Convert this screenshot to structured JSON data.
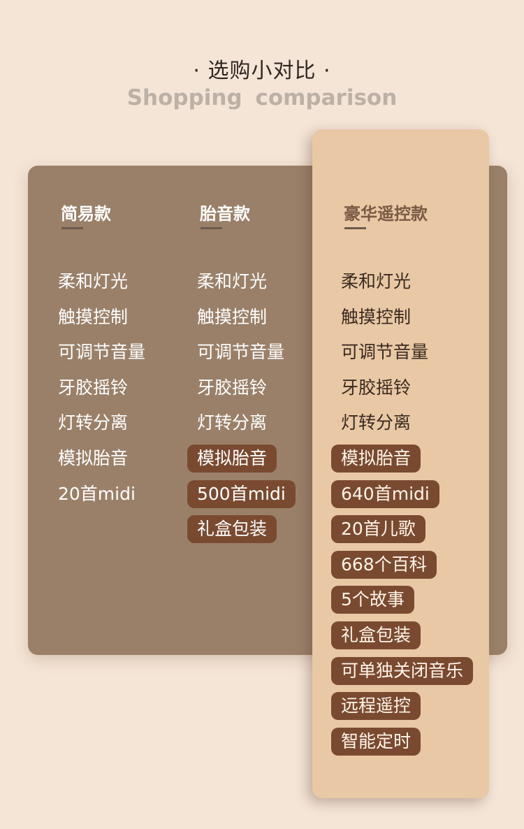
{
  "header": {
    "title": "· 选购小对比 ·",
    "subtitle": "Shopping  comparison"
  },
  "colors": {
    "background": "#f5e5d7",
    "card": "#9a8069",
    "highlight_card": "#e9c8a5",
    "pill": "#7a4a30"
  },
  "columns": [
    {
      "name": "简易款",
      "features": [
        {
          "text": "柔和灯光",
          "highlight": false
        },
        {
          "text": "触摸控制",
          "highlight": false
        },
        {
          "text": "可调节音量",
          "highlight": false
        },
        {
          "text": "牙胶摇铃",
          "highlight": false
        },
        {
          "text": "灯转分离",
          "highlight": false
        },
        {
          "text": "模拟胎音",
          "highlight": false
        },
        {
          "text": "20首midi",
          "highlight": false
        }
      ]
    },
    {
      "name": "胎音款",
      "features": [
        {
          "text": "柔和灯光",
          "highlight": false
        },
        {
          "text": "触摸控制",
          "highlight": false
        },
        {
          "text": "可调节音量",
          "highlight": false
        },
        {
          "text": "牙胶摇铃",
          "highlight": false
        },
        {
          "text": "灯转分离",
          "highlight": false
        },
        {
          "text": "模拟胎音",
          "highlight": true
        },
        {
          "text": "500首midi",
          "highlight": true
        },
        {
          "text": "礼盒包装",
          "highlight": true
        }
      ]
    },
    {
      "name": "豪华遥控款",
      "features": [
        {
          "text": "柔和灯光",
          "highlight": false
        },
        {
          "text": "触摸控制",
          "highlight": false
        },
        {
          "text": "可调节音量",
          "highlight": false
        },
        {
          "text": "牙胶摇铃",
          "highlight": false
        },
        {
          "text": "灯转分离",
          "highlight": false
        },
        {
          "text": "模拟胎音",
          "highlight": true
        },
        {
          "text": "640首midi",
          "highlight": true
        },
        {
          "text": "20首儿歌",
          "highlight": true
        },
        {
          "text": "668个百科",
          "highlight": true
        },
        {
          "text": "5个故事",
          "highlight": true
        },
        {
          "text": "礼盒包装",
          "highlight": true
        },
        {
          "text": "可单独关闭音乐",
          "highlight": true
        },
        {
          "text": "远程遥控",
          "highlight": true
        },
        {
          "text": "智能定时",
          "highlight": true
        }
      ]
    }
  ]
}
